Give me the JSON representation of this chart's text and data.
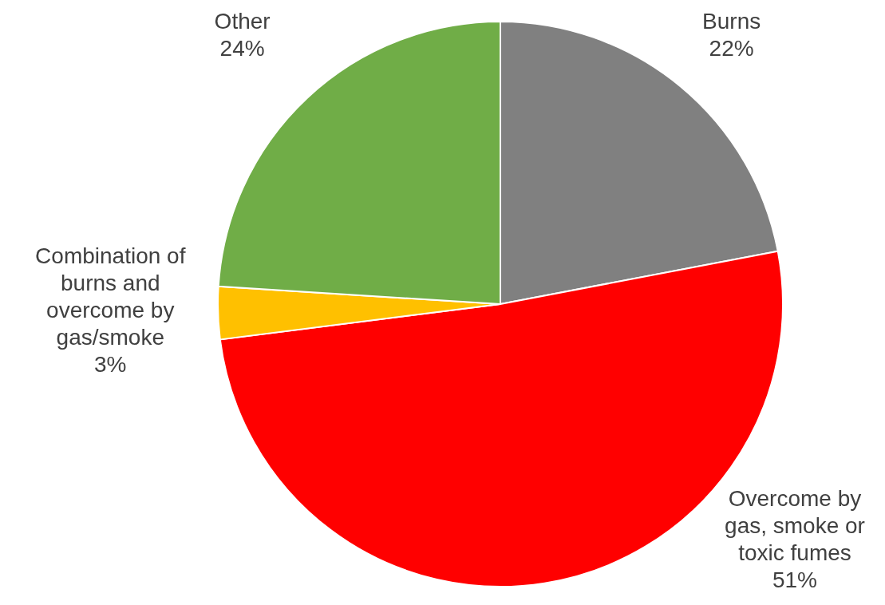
{
  "chart_data": {
    "type": "pie",
    "categories": [
      "Burns",
      "Overcome by gas, smoke or toxic fumes",
      "Combination of burns and overcome by gas/smoke",
      "Other"
    ],
    "values": [
      22,
      51,
      3,
      24
    ],
    "colors": [
      "#808080",
      "#ff0000",
      "#ffc000",
      "#70ad47"
    ],
    "value_labels": [
      "22%",
      "51%",
      "3%",
      "24%"
    ],
    "legend": false
  }
}
